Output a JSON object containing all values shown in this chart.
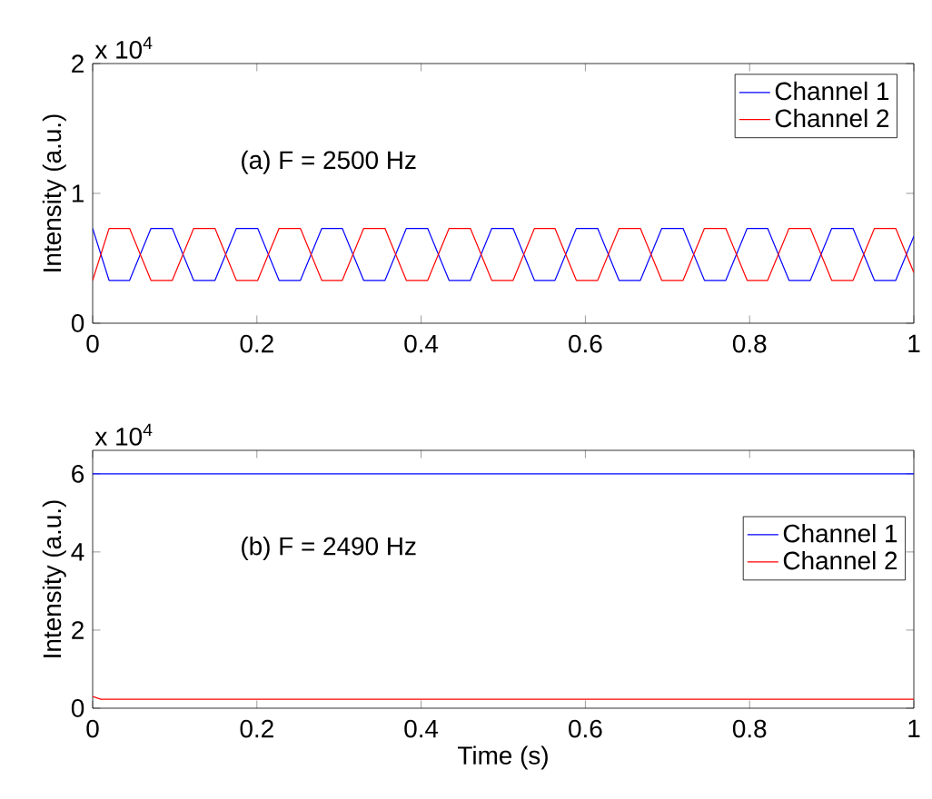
{
  "chart_data": [
    {
      "type": "line",
      "ylabel": "Intensity (a.u.)",
      "annotations": [
        "(a)  F = 2500 Hz",
        "x 10$^{4}$"
      ],
      "legend": "top right",
      "grid": false,
      "marker": "none",
      "line_style": "solid",
      "xlim": [
        0,
        1
      ],
      "xticks": [
        0,
        0.2,
        0.4,
        0.6,
        0.8,
        1
      ],
      "ylim": [
        0,
        2
      ],
      "yticks": [
        0,
        1,
        2
      ],
      "x": [
        0,
        0.02,
        0.045,
        0.071,
        0.097,
        0.123,
        0.149,
        0.175,
        0.201,
        0.227,
        0.253,
        0.279,
        0.304,
        0.33,
        0.356,
        0.382,
        0.408,
        0.434,
        0.46,
        0.486,
        0.512,
        0.538,
        0.563,
        0.589,
        0.615,
        0.641,
        0.667,
        0.693,
        0.719,
        0.745,
        0.771,
        0.797,
        0.822,
        0.848,
        0.874,
        0.9,
        0.926,
        0.952,
        0.978,
        1
      ],
      "series": [
        {
          "name": "Channel 1",
          "color": "#0000ff",
          "values": [
            0.73,
            0.33,
            0.33,
            0.73,
            0.73,
            0.33,
            0.33,
            0.73,
            0.73,
            0.33,
            0.33,
            0.73,
            0.73,
            0.33,
            0.33,
            0.73,
            0.73,
            0.33,
            0.33,
            0.73,
            0.73,
            0.33,
            0.33,
            0.73,
            0.73,
            0.33,
            0.33,
            0.73,
            0.73,
            0.33,
            0.33,
            0.73,
            0.73,
            0.33,
            0.33,
            0.73,
            0.73,
            0.33,
            0.33,
            0.67
          ]
        },
        {
          "name": "Channel 2",
          "color": "#ff0000",
          "values": [
            0.33,
            0.73,
            0.73,
            0.33,
            0.33,
            0.73,
            0.73,
            0.33,
            0.33,
            0.73,
            0.73,
            0.33,
            0.33,
            0.73,
            0.73,
            0.33,
            0.33,
            0.73,
            0.73,
            0.33,
            0.33,
            0.73,
            0.73,
            0.33,
            0.33,
            0.73,
            0.73,
            0.33,
            0.33,
            0.73,
            0.73,
            0.33,
            0.33,
            0.73,
            0.73,
            0.33,
            0.33,
            0.73,
            0.73,
            0.39
          ]
        }
      ]
    },
    {
      "type": "line",
      "xlabel": "Time (s)",
      "ylabel": "Intensity (a.u.)",
      "annotations": [
        "(b)  F = 2490 Hz",
        "x 10$^{4}$"
      ],
      "legend": "right",
      "grid": false,
      "marker": "none",
      "line_style": "solid",
      "xlim": [
        0,
        1
      ],
      "xticks": [
        0,
        0.2,
        0.4,
        0.6,
        0.8,
        1
      ],
      "ylim": [
        0,
        6.6
      ],
      "yticks": [
        0,
        2,
        4,
        6
      ],
      "x": [
        0,
        0.01,
        1
      ],
      "series": [
        {
          "name": "Channel 1",
          "color": "#0000ff",
          "values": [
            6.0,
            6.0,
            6.0
          ]
        },
        {
          "name": "Channel 2",
          "color": "#ff0000",
          "values": [
            0.3,
            0.23,
            0.23
          ]
        }
      ]
    }
  ]
}
